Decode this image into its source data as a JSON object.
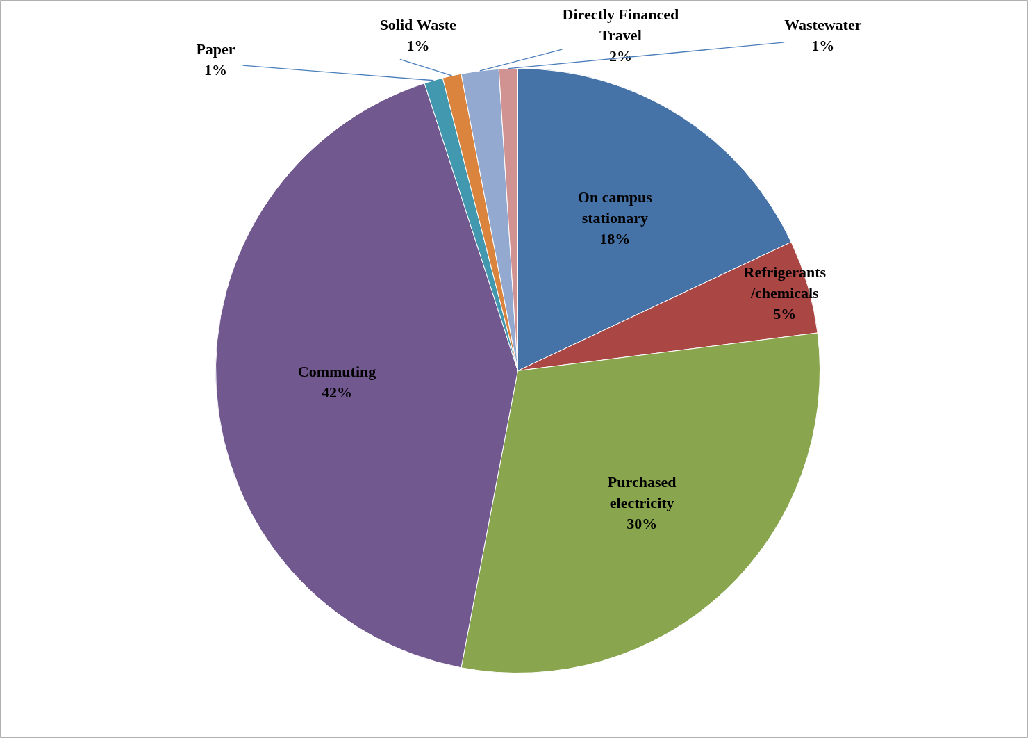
{
  "chart_data": {
    "type": "pie",
    "categories": [
      "On campus\nstationary",
      "Refrigerants\n/chemicals",
      "Purchased\nelectricity",
      "Commuting",
      "Paper",
      "Solid Waste",
      "Directly Financed\nTravel",
      "Wastewater"
    ],
    "values": [
      18,
      5,
      30,
      42,
      1,
      1,
      2,
      1
    ],
    "colors": [
      "#4572a7",
      "#aa4643",
      "#89a54e",
      "#71588f",
      "#4198af",
      "#db843d",
      "#93a9cf",
      "#d19392"
    ],
    "value_labels": [
      "18%",
      "5%",
      "30%",
      "42%",
      "1%",
      "1%",
      "2%",
      "1%"
    ]
  }
}
